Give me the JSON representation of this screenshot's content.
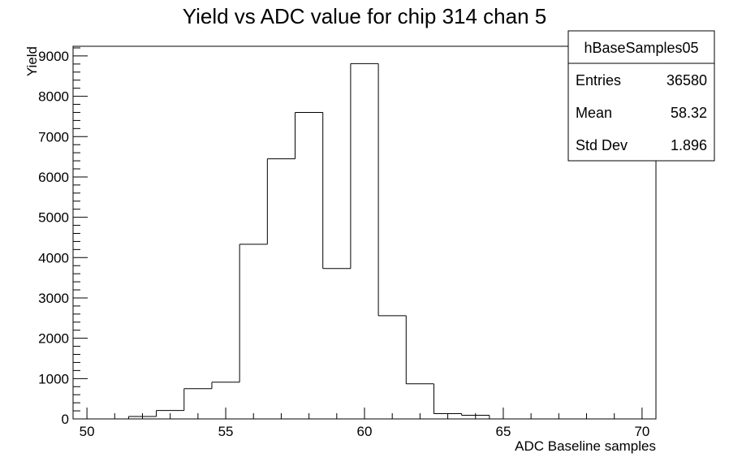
{
  "chart_data": {
    "type": "bar",
    "title": "Yield vs ADC value for chip 314 chan 5",
    "xlabel": "ADC Baseline samples",
    "ylabel": "Yield",
    "xlim": [
      49.5,
      70.5
    ],
    "ylim": [
      0,
      9240
    ],
    "x_ticks": [
      50,
      55,
      60,
      65,
      70
    ],
    "y_ticks": [
      0,
      1000,
      2000,
      3000,
      4000,
      5000,
      6000,
      7000,
      8000,
      9000
    ],
    "grid": false,
    "legend": "none",
    "line_color": "#00008b",
    "bins": [
      {
        "low": 49.5,
        "high": 50.5,
        "value": 0
      },
      {
        "low": 50.5,
        "high": 51.5,
        "value": 0
      },
      {
        "low": 51.5,
        "high": 52.5,
        "value": 60
      },
      {
        "low": 52.5,
        "high": 53.5,
        "value": 210
      },
      {
        "low": 53.5,
        "high": 54.5,
        "value": 750
      },
      {
        "low": 54.5,
        "high": 55.5,
        "value": 910
      },
      {
        "low": 55.5,
        "high": 56.5,
        "value": 4330
      },
      {
        "low": 56.5,
        "high": 57.5,
        "value": 6450
      },
      {
        "low": 57.5,
        "high": 58.5,
        "value": 7600
      },
      {
        "low": 58.5,
        "high": 59.5,
        "value": 3730
      },
      {
        "low": 59.5,
        "high": 60.5,
        "value": 8810
      },
      {
        "low": 60.5,
        "high": 61.5,
        "value": 2560
      },
      {
        "low": 61.5,
        "high": 62.5,
        "value": 870
      },
      {
        "low": 62.5,
        "high": 63.5,
        "value": 130
      },
      {
        "low": 63.5,
        "high": 64.5,
        "value": 90
      },
      {
        "low": 64.5,
        "high": 65.5,
        "value": 0
      },
      {
        "low": 65.5,
        "high": 66.5,
        "value": 0
      },
      {
        "low": 66.5,
        "high": 67.5,
        "value": 0
      },
      {
        "low": 67.5,
        "high": 68.5,
        "value": 0
      },
      {
        "low": 68.5,
        "high": 69.5,
        "value": 0
      },
      {
        "low": 69.5,
        "high": 70.5,
        "value": 0
      }
    ],
    "stats_box": {
      "name": "hBaseSamples05",
      "rows": [
        {
          "label": "Entries",
          "value": "36580"
        },
        {
          "label": "Mean",
          "value": "58.32"
        },
        {
          "label": "Std Dev",
          "value": "1.896"
        }
      ]
    }
  }
}
